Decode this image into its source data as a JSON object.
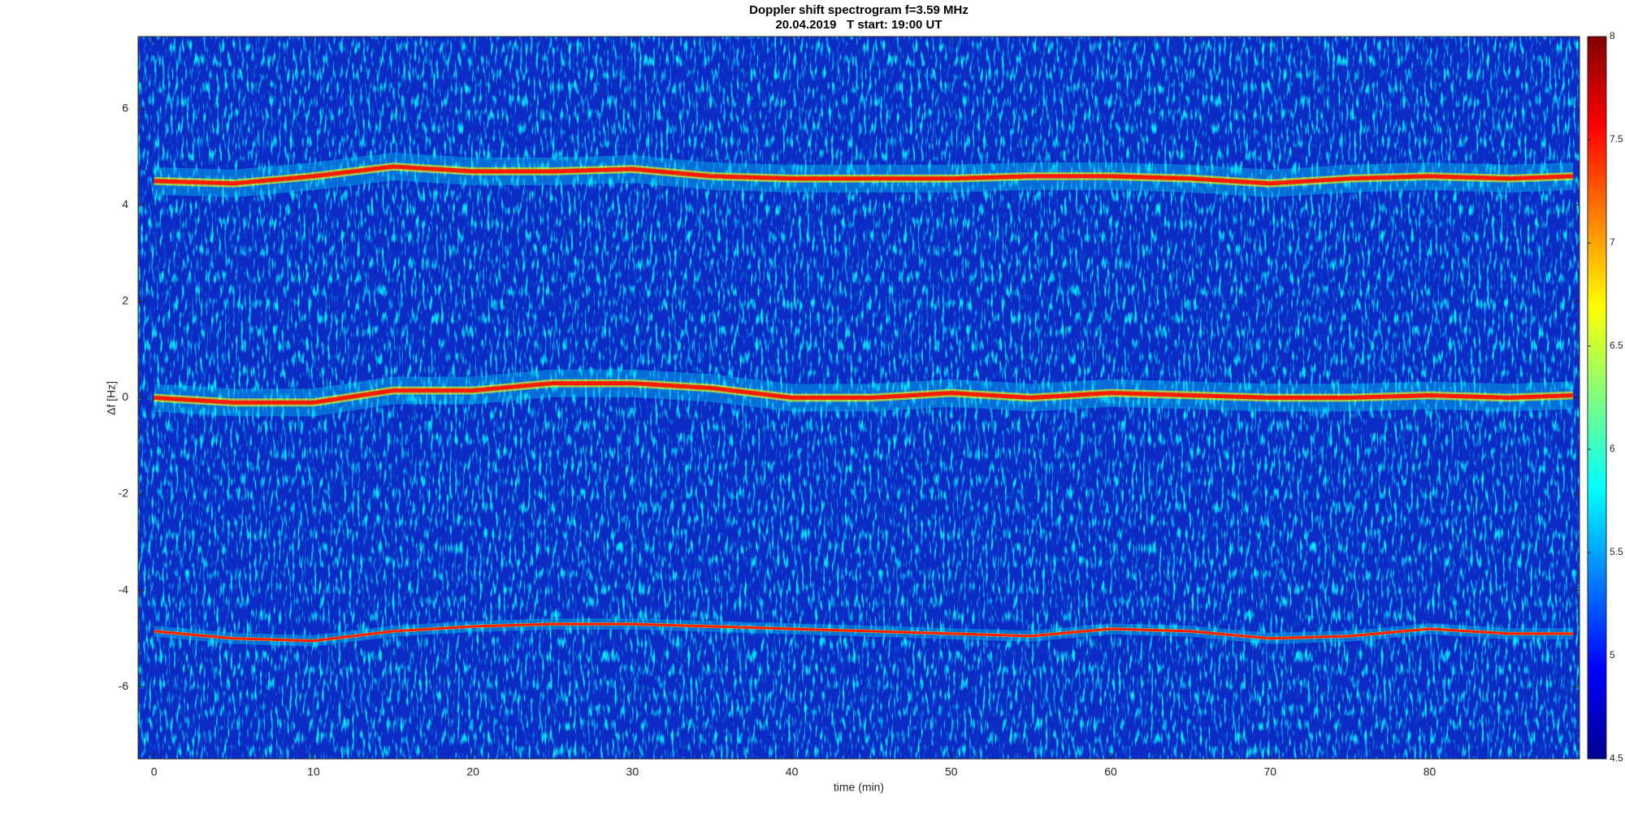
{
  "chart_data": {
    "type": "spectrogram",
    "title": "Doppler shift spectrogram f=3.59 MHz",
    "subtitle": "20.04.2019   T start: 19:00 UT",
    "x_label": "time (min)",
    "y_label": "Δf [Hz]",
    "x": [
      0,
      5,
      10,
      15,
      20,
      25,
      30,
      35,
      40,
      45,
      50,
      55,
      60,
      65,
      70,
      75,
      80,
      85,
      89
    ],
    "series": [
      {
        "color": "#ff1a00",
        "values": [
          4.5,
          4.45,
          4.6,
          4.8,
          4.7,
          4.7,
          4.75,
          4.6,
          4.55,
          4.55,
          4.55,
          4.6,
          4.6,
          4.55,
          4.45,
          4.55,
          4.6,
          4.55,
          4.6
        ]
      },
      {
        "color": "#ff1a00",
        "values": [
          0.0,
          -0.1,
          -0.1,
          0.15,
          0.15,
          0.3,
          0.3,
          0.2,
          0.0,
          0.0,
          0.1,
          0.0,
          0.1,
          0.05,
          0.0,
          0.0,
          0.05,
          0.0,
          0.05
        ]
      },
      {
        "color": "#ff1a00",
        "values": [
          -4.85,
          -5.0,
          -5.05,
          -4.85,
          -4.75,
          -4.7,
          -4.7,
          -4.75,
          -4.8,
          -4.85,
          -4.9,
          -4.95,
          -4.8,
          -4.85,
          -5.0,
          -4.95,
          -4.8,
          -4.9,
          -4.9
        ]
      }
    ],
    "xlim": [
      -1,
      89.4
    ],
    "xticks": [
      0,
      10,
      20,
      30,
      40,
      50,
      60,
      70,
      80
    ],
    "ylim": [
      -7.5,
      7.5
    ],
    "yticks": [
      -6,
      -4,
      -2,
      0,
      2,
      4,
      6
    ],
    "colormap": "jet",
    "clim": [
      4.5,
      8
    ],
    "cticks": [
      4.5,
      5,
      5.5,
      6,
      6.5,
      7,
      7.5,
      8
    ]
  }
}
